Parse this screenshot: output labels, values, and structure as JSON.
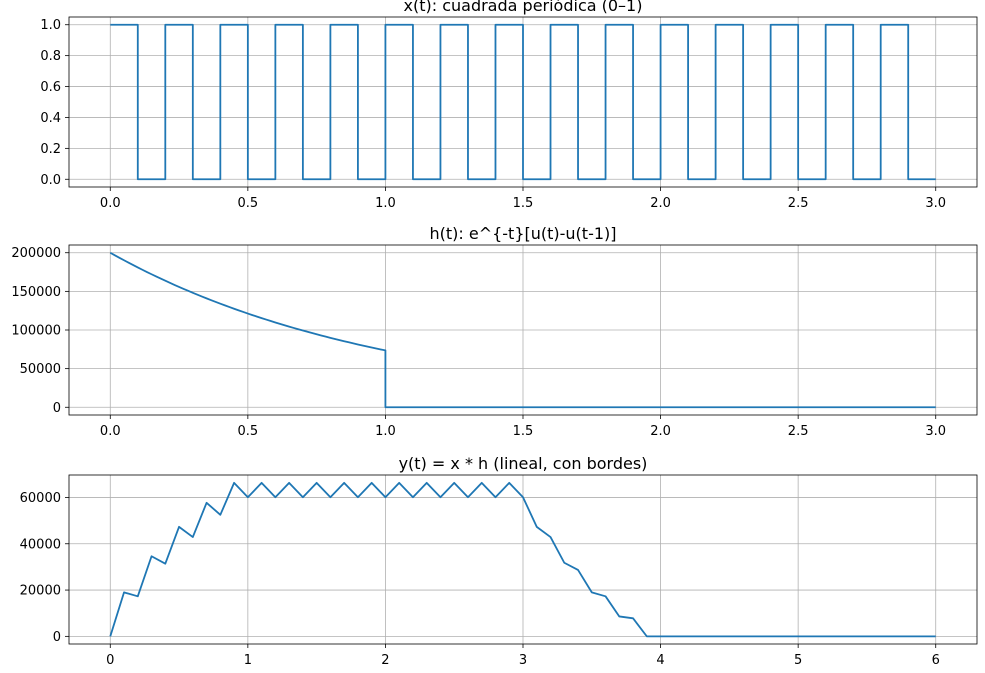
{
  "colors": {
    "line": "#1f77b4",
    "grid": "#b0b0b0",
    "background": "#ffffff"
  },
  "chart_data": [
    {
      "type": "line",
      "title": "x(t): cuadrada periódica (0–1)",
      "xlim": [
        -0.15,
        3.15
      ],
      "ylim": [
        -0.05,
        1.05
      ],
      "xticks": [
        0.0,
        0.5,
        1.0,
        1.5,
        2.0,
        2.5,
        3.0
      ],
      "xtick_labels": [
        "0.0",
        "0.5",
        "1.0",
        "1.5",
        "2.0",
        "2.5",
        "3.0"
      ],
      "yticks": [
        0.0,
        0.2,
        0.4,
        0.6,
        0.8,
        1.0
      ],
      "ytick_labels": [
        "0.0",
        "0.2",
        "0.4",
        "0.6",
        "0.8",
        "1.0"
      ],
      "grid": true,
      "series": [
        {
          "kind": "square_wave",
          "x_start": 0.0,
          "x_end": 3.0,
          "period": 0.2,
          "duty": 0.5,
          "low": 0,
          "high": 1
        }
      ]
    },
    {
      "type": "line",
      "title": "h(t): e^{-t}[u(t)-u(t-1)]",
      "xlim": [
        -0.15,
        3.15
      ],
      "ylim": [
        -10000,
        210000
      ],
      "xticks": [
        0.0,
        0.5,
        1.0,
        1.5,
        2.0,
        2.5,
        3.0
      ],
      "xtick_labels": [
        "0.0",
        "0.5",
        "1.0",
        "1.5",
        "2.0",
        "2.5",
        "3.0"
      ],
      "yticks": [
        0,
        50000,
        100000,
        150000,
        200000
      ],
      "ytick_labels": [
        "0",
        "50000",
        "100000",
        "150000",
        "200000"
      ],
      "grid": true,
      "series": [
        {
          "kind": "decaying_pulse",
          "amplitude": 200000,
          "decay": 1,
          "x_start": 0.0,
          "x_cut": 1.0,
          "x_end": 3.0
        }
      ]
    },
    {
      "type": "line",
      "title": "y(t) = x * h (lineal, con bordes)",
      "xlim": [
        -0.3,
        6.3
      ],
      "ylim": [
        -3300,
        69700
      ],
      "xticks": [
        0,
        1,
        2,
        3,
        4,
        5,
        6
      ],
      "xtick_labels": [
        "0",
        "1",
        "2",
        "3",
        "4",
        "5",
        "6"
      ],
      "yticks": [
        0,
        20000,
        40000,
        60000
      ],
      "ytick_labels": [
        "0",
        "20000",
        "40000",
        "60000"
      ],
      "grid": true,
      "series": [
        {
          "kind": "points",
          "x": [
            0.0,
            0.1,
            0.2,
            0.3,
            0.4,
            0.5,
            0.6,
            0.7,
            0.8,
            0.9,
            1.0,
            1.1,
            1.2,
            1.3,
            1.4,
            1.5,
            1.6,
            1.7,
            1.8,
            1.9,
            2.0,
            2.1,
            2.2,
            2.3,
            2.4,
            2.5,
            2.6,
            2.7,
            2.8,
            2.9,
            3.0,
            3.1,
            3.2,
            3.3,
            3.4,
            3.5,
            3.6,
            3.7,
            3.8,
            3.9,
            4.0,
            5.0,
            6.0
          ],
          "y": [
            0,
            19000,
            17300,
            34600,
            31400,
            47300,
            42900,
            57700,
            52500,
            66300,
            60100,
            66300,
            60100,
            66300,
            60100,
            66300,
            60100,
            66300,
            60100,
            66300,
            60100,
            66300,
            60100,
            66300,
            60100,
            66300,
            60100,
            66300,
            60100,
            66300,
            60100,
            47300,
            42900,
            31800,
            28700,
            19000,
            17300,
            8600,
            7800,
            0,
            0,
            0,
            0
          ]
        }
      ]
    }
  ]
}
